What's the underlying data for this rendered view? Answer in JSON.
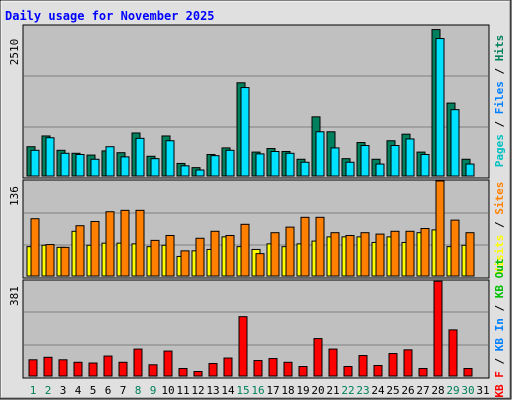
{
  "title": "Daily usage for November 2025",
  "colors": {
    "background": "#e0e0e0",
    "plot": "#c0c0c0",
    "hits": "#00805c",
    "files": "#00e0ff",
    "sites": "#ff8000",
    "visits": "#ffff00",
    "kbin": "#0080ff",
    "kbout": "#00c000",
    "kbf": "#ff0000",
    "title_text": "#0000ff",
    "weekend_day": "#00805c",
    "weekday": "#000000"
  },
  "chart_data": [
    {
      "type": "bar",
      "panel": "top",
      "ymax_label": "2510",
      "ylim": [
        0,
        2510
      ],
      "right_labels": [
        {
          "text": "Pages",
          "color": "#00c0c0"
        },
        {
          "text": " / ",
          "color": "#000000"
        },
        {
          "text": "Files",
          "color": "#0080ff"
        },
        {
          "text": " / ",
          "color": "#000000"
        },
        {
          "text": "Hits",
          "color": "#00805c"
        }
      ],
      "series": [
        {
          "name": "Hits",
          "color": "#00805c",
          "values": [
            490,
            670,
            430,
            380,
            350,
            420,
            390,
            720,
            330,
            670,
            210,
            140,
            360,
            470,
            1560,
            400,
            460,
            410,
            280,
            990,
            740,
            290,
            560,
            280,
            590,
            700,
            400,
            2450,
            1220,
            280
          ]
        },
        {
          "name": "Files",
          "color": "#00e0ff",
          "values": [
            430,
            640,
            380,
            360,
            280,
            490,
            320,
            630,
            290,
            590,
            170,
            100,
            340,
            430,
            1480,
            370,
            410,
            380,
            230,
            740,
            470,
            230,
            510,
            200,
            510,
            620,
            360,
            2300,
            1110,
            200
          ]
        }
      ]
    },
    {
      "type": "bar",
      "panel": "middle",
      "ymax_label": "136",
      "ylim": [
        0,
        136
      ],
      "right_labels": [
        {
          "text": "Visits",
          "color": "#ffff00"
        },
        {
          "text": " / ",
          "color": "#000000"
        },
        {
          "text": "Sites",
          "color": "#ff8000"
        }
      ],
      "series": [
        {
          "name": "Visits",
          "color": "#ffff00",
          "values": [
            42,
            44,
            41,
            64,
            44,
            47,
            47,
            46,
            42,
            44,
            28,
            36,
            38,
            56,
            42,
            38,
            46,
            42,
            46,
            50,
            56,
            56,
            56,
            48,
            56,
            48,
            62,
            66,
            42,
            44
          ]
        },
        {
          "name": "Sites",
          "color": "#ff8000",
          "values": [
            82,
            45,
            41,
            72,
            78,
            92,
            94,
            94,
            51,
            58,
            36,
            54,
            64,
            58,
            74,
            32,
            62,
            70,
            84,
            84,
            62,
            58,
            62,
            60,
            64,
            64,
            68,
            136,
            80,
            62
          ]
        }
      ]
    },
    {
      "type": "bar",
      "panel": "bottom",
      "ymax_label": "381",
      "ylim": [
        0,
        381
      ],
      "right_labels": [
        {
          "text": "KB F",
          "color": "#ff0000"
        },
        {
          "text": " / ",
          "color": "#000000"
        },
        {
          "text": "KB In",
          "color": "#0080ff"
        },
        {
          "text": " / ",
          "color": "#000000"
        },
        {
          "text": "KB Out",
          "color": "#00c000"
        }
      ],
      "series": [
        {
          "name": "KB F",
          "color": "#ff0000",
          "values": [
            65,
            75,
            65,
            55,
            52,
            80,
            55,
            108,
            45,
            100,
            30,
            18,
            50,
            72,
            238,
            62,
            70,
            55,
            38,
            150,
            108,
            38,
            82,
            42,
            90,
            105,
            30,
            380,
            185,
            30
          ]
        }
      ]
    }
  ],
  "x_labels": [
    {
      "text": "1",
      "weekend": true
    },
    {
      "text": "2",
      "weekend": true
    },
    {
      "text": "3",
      "weekend": false
    },
    {
      "text": "4",
      "weekend": false
    },
    {
      "text": "5",
      "weekend": false
    },
    {
      "text": "6",
      "weekend": false
    },
    {
      "text": "7",
      "weekend": false
    },
    {
      "text": "8",
      "weekend": true
    },
    {
      "text": "9",
      "weekend": true
    },
    {
      "text": "10",
      "weekend": false
    },
    {
      "text": "11",
      "weekend": false
    },
    {
      "text": "12",
      "weekend": false
    },
    {
      "text": "13",
      "weekend": false
    },
    {
      "text": "14",
      "weekend": false
    },
    {
      "text": "15",
      "weekend": true
    },
    {
      "text": "16",
      "weekend": true
    },
    {
      "text": "17",
      "weekend": false
    },
    {
      "text": "18",
      "weekend": false
    },
    {
      "text": "19",
      "weekend": false
    },
    {
      "text": "20",
      "weekend": false
    },
    {
      "text": "21",
      "weekend": false
    },
    {
      "text": "22",
      "weekend": true
    },
    {
      "text": "23",
      "weekend": true
    },
    {
      "text": "24",
      "weekend": false
    },
    {
      "text": "25",
      "weekend": false
    },
    {
      "text": "26",
      "weekend": false
    },
    {
      "text": "27",
      "weekend": false
    },
    {
      "text": "28",
      "weekend": false
    },
    {
      "text": "29",
      "weekend": true
    },
    {
      "text": "30",
      "weekend": true
    },
    {
      "text": "31",
      "weekend": false
    }
  ]
}
